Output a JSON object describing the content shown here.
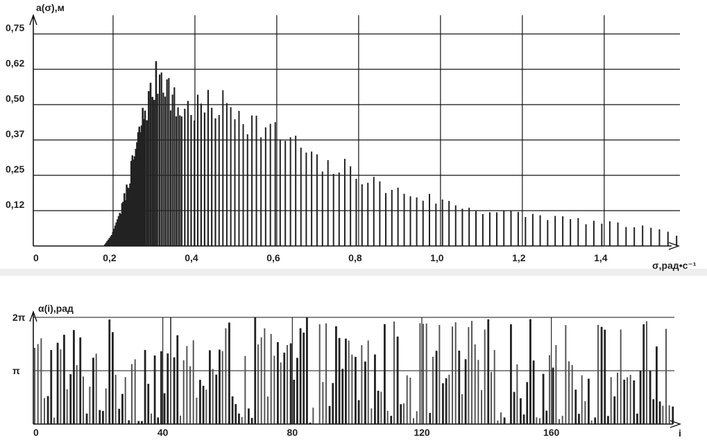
{
  "chart_data": [
    {
      "type": "bar",
      "ylabel": "a(σ),м",
      "xlabel": "σ,рад•с⁻¹",
      "xlim": [
        0,
        1.58
      ],
      "ylim": [
        0,
        0.75
      ],
      "x_tick_labels": [
        "0",
        "0,2",
        "0,4",
        "0,6",
        "0,8",
        "1,0",
        "1,2",
        "1,4"
      ],
      "x_tick_values": [
        0,
        0.2,
        0.4,
        0.6,
        0.8,
        1.0,
        1.2,
        1.4
      ],
      "y_tick_labels": [
        "0,12",
        "0,25",
        "0,37",
        "0,50",
        "0,62",
        "0,75"
      ],
      "y_tick_values": [
        0.125,
        0.25,
        0.375,
        0.5,
        0.625,
        0.75
      ],
      "grid": true,
      "envelope": [
        [
          0.17,
          0.0
        ],
        [
          0.19,
          0.04
        ],
        [
          0.21,
          0.12
        ],
        [
          0.23,
          0.24
        ],
        [
          0.25,
          0.38
        ],
        [
          0.27,
          0.52
        ],
        [
          0.29,
          0.6
        ],
        [
          0.31,
          0.68
        ],
        [
          0.33,
          0.6
        ],
        [
          0.35,
          0.52
        ],
        [
          0.38,
          0.53
        ],
        [
          0.42,
          0.53
        ],
        [
          0.46,
          0.54
        ],
        [
          0.5,
          0.53
        ],
        [
          0.53,
          0.48
        ],
        [
          0.58,
          0.44
        ],
        [
          0.62,
          0.41
        ],
        [
          0.66,
          0.37
        ],
        [
          0.7,
          0.3
        ],
        [
          0.76,
          0.3
        ],
        [
          0.8,
          0.27
        ],
        [
          0.86,
          0.22
        ],
        [
          0.92,
          0.2
        ],
        [
          1.0,
          0.17
        ],
        [
          1.08,
          0.14
        ],
        [
          1.16,
          0.125
        ],
        [
          1.24,
          0.115
        ],
        [
          1.32,
          0.1
        ],
        [
          1.4,
          0.085
        ],
        [
          1.48,
          0.075
        ],
        [
          1.56,
          0.045
        ]
      ]
    },
    {
      "type": "bar",
      "ylabel": "α(i),рад",
      "xlabel": "i",
      "xlim": [
        0,
        198
      ],
      "ylim": [
        0,
        6.283
      ],
      "x_tick_labels": [
        "0",
        "40",
        "80",
        "120",
        "160"
      ],
      "x_tick_values": [
        0,
        40,
        80,
        120,
        160
      ],
      "y_tick_labels": [
        "π",
        "2π"
      ],
      "y_tick_values": [
        3.1416,
        6.2832
      ],
      "grid": true,
      "n_bars": 198
    }
  ]
}
